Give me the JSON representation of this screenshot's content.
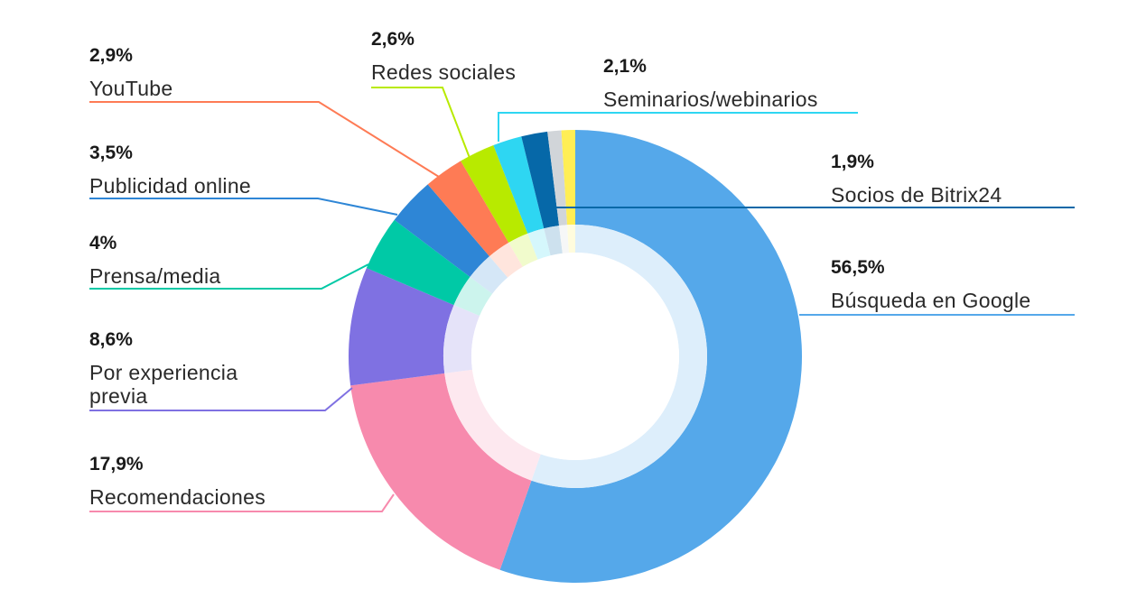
{
  "chart_data": {
    "type": "pie",
    "donut": true,
    "title": "",
    "slices": [
      {
        "label": "Búsqueda en Google",
        "value_text": "56,5%",
        "value": 56.5,
        "color": "#55a8ea"
      },
      {
        "label": "Recomendaciones",
        "value_text": "17,9%",
        "value": 17.9,
        "color": "#f78aad"
      },
      {
        "label": "Por experiencia previa",
        "label_lines": [
          "Por experiencia",
          "previa"
        ],
        "value_text": "8,6%",
        "value": 8.6,
        "color": "#7f71e2"
      },
      {
        "label": "Prensa/media",
        "value_text": "4%",
        "value": 4.0,
        "color": "#00c9a6"
      },
      {
        "label": "Publicidad online",
        "value_text": "3,5%",
        "value": 3.5,
        "color": "#2e86d6"
      },
      {
        "label": "YouTube",
        "value_text": "2,9%",
        "value": 2.9,
        "color": "#fe7b55"
      },
      {
        "label": "Redes sociales",
        "value_text": "2,6%",
        "value": 2.6,
        "color": "#b8ea00"
      },
      {
        "label": "Seminarios/webinarios",
        "value_text": "2,1%",
        "value": 2.1,
        "color": "#2ed6f2"
      },
      {
        "label": "Socios de Bitrix24",
        "value_text": "1,9%",
        "value": 1.9,
        "color": "#0668a8"
      },
      {
        "label": "",
        "value_text": "",
        "value": 1.0,
        "color": "#d1d5d9"
      },
      {
        "label": "",
        "value_text": "",
        "value": 1.0,
        "color": "#ffee55"
      }
    ],
    "legend": "callout labels around the donut"
  }
}
